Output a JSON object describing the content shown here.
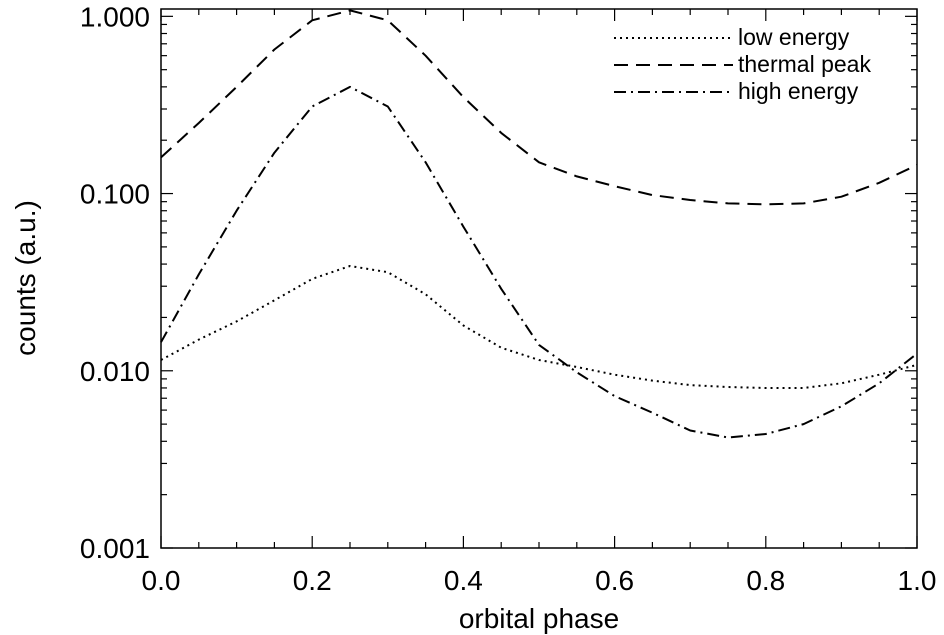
{
  "chart_data": {
    "type": "line",
    "title": "",
    "xlabel": "orbital phase",
    "ylabel": "counts (a.u.)",
    "xlim": [
      0.0,
      1.0
    ],
    "ylim": [
      0.001,
      1.1
    ],
    "yscale": "log",
    "grid": false,
    "legend_position": "top-right",
    "x_tick_labels": [
      "0.0",
      "0.2",
      "0.4",
      "0.6",
      "0.8",
      "1.0"
    ],
    "x_ticks": [
      0.0,
      0.2,
      0.4,
      0.6,
      0.8,
      1.0
    ],
    "y_tick_labels": [
      "0.001",
      "0.010",
      "0.100",
      "1.000"
    ],
    "y_ticks": [
      0.001,
      0.01,
      0.1,
      1.0
    ],
    "series": [
      {
        "name": "low energy",
        "style": "dotted",
        "color": "#000000",
        "x": [
          0.0,
          0.05,
          0.1,
          0.15,
          0.2,
          0.25,
          0.3,
          0.35,
          0.4,
          0.45,
          0.5,
          0.55,
          0.6,
          0.65,
          0.7,
          0.75,
          0.8,
          0.85,
          0.9,
          0.95,
          1.0
        ],
        "y": [
          0.0115,
          0.015,
          0.019,
          0.025,
          0.033,
          0.039,
          0.036,
          0.027,
          0.018,
          0.0135,
          0.0115,
          0.0105,
          0.0095,
          0.0088,
          0.0083,
          0.0081,
          0.008,
          0.008,
          0.0085,
          0.0095,
          0.0108
        ]
      },
      {
        "name": "thermal peak",
        "style": "dashed",
        "color": "#000000",
        "x": [
          0.0,
          0.05,
          0.1,
          0.15,
          0.2,
          0.25,
          0.3,
          0.35,
          0.4,
          0.45,
          0.5,
          0.55,
          0.6,
          0.65,
          0.7,
          0.75,
          0.8,
          0.85,
          0.9,
          0.95,
          1.0
        ],
        "y": [
          0.16,
          0.25,
          0.4,
          0.65,
          0.95,
          1.08,
          0.95,
          0.6,
          0.35,
          0.22,
          0.15,
          0.125,
          0.11,
          0.098,
          0.092,
          0.088,
          0.087,
          0.088,
          0.096,
          0.115,
          0.145
        ]
      },
      {
        "name": "high energy",
        "style": "dashdot",
        "color": "#000000",
        "x": [
          0.0,
          0.05,
          0.1,
          0.15,
          0.2,
          0.25,
          0.3,
          0.35,
          0.4,
          0.45,
          0.5,
          0.55,
          0.6,
          0.65,
          0.7,
          0.75,
          0.8,
          0.85,
          0.9,
          0.95,
          1.0
        ],
        "y": [
          0.0145,
          0.035,
          0.08,
          0.17,
          0.31,
          0.4,
          0.31,
          0.15,
          0.065,
          0.029,
          0.014,
          0.0098,
          0.0072,
          0.0058,
          0.0046,
          0.0042,
          0.0044,
          0.005,
          0.0063,
          0.0085,
          0.0125
        ]
      }
    ]
  }
}
